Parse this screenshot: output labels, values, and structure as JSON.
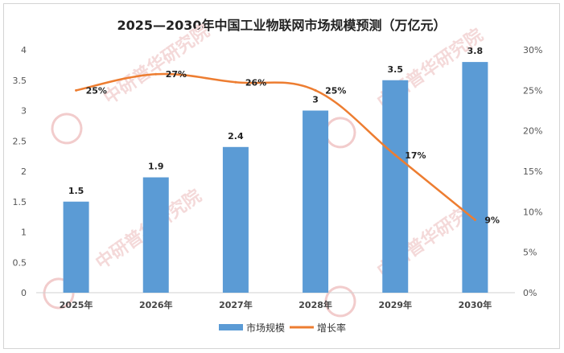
{
  "chart_data": {
    "type": "bar",
    "title": "2025—2030年中国工业物联网市场规模预测（万亿元）",
    "categories": [
      "2025年",
      "2026年",
      "2027年",
      "2028年",
      "2029年",
      "2030年"
    ],
    "series": [
      {
        "name": "市场规模",
        "type": "bar",
        "axis": "left",
        "color": "#5b9bd5",
        "values": [
          1.5,
          1.9,
          2.4,
          3,
          3.5,
          3.8
        ],
        "labels": [
          "1.5",
          "1.9",
          "2.4",
          "3",
          "3.5",
          "3.8"
        ]
      },
      {
        "name": "增长率",
        "type": "line",
        "axis": "right",
        "color": "#ed7d31",
        "values": [
          25,
          27,
          26,
          25,
          17,
          9
        ],
        "labels": [
          "25%",
          "27%",
          "26%",
          "25%",
          "17%",
          "9%"
        ]
      }
    ],
    "y_left": {
      "min": 0,
      "max": 4,
      "ticks": [
        "0",
        "0.5",
        "1",
        "1.5",
        "2",
        "2.5",
        "3",
        "3.5",
        "4"
      ]
    },
    "y_right": {
      "min": 0,
      "max": 30,
      "ticks": [
        "0%",
        "5%",
        "10%",
        "15%",
        "20%",
        "25%",
        "30%"
      ]
    },
    "grid": false,
    "legend": "bottom",
    "watermark": "中研普华研究院 CIRN www.ChinaIRN.com"
  }
}
